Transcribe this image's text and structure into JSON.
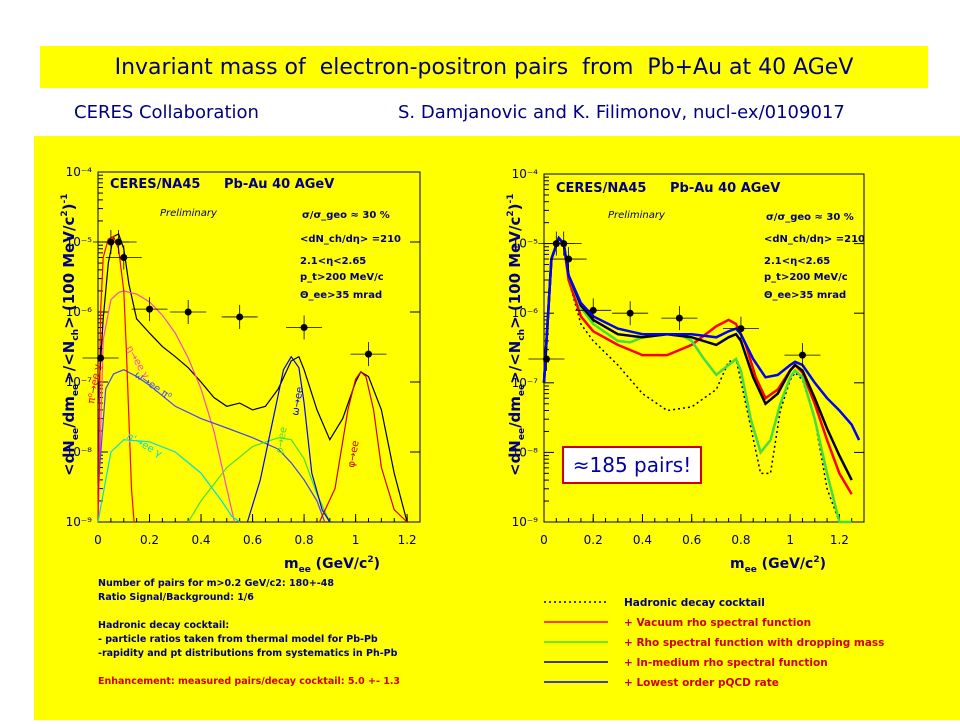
{
  "header": {
    "title": "Invariant mass of  electron-positron pairs  from  Pb+Au at 40 AGeV",
    "collab": "CERES Collaboration",
    "ref": "S. Damjanovic and K. Filimonov, nucl-ex/0109017"
  },
  "colors": {
    "panel": "#ffff00",
    "title_text": "#000080",
    "data_points": "#000000"
  },
  "left_panel": {
    "experiment": "CERES/NA45",
    "system": "Pb-Au 40 AGeV",
    "prelim": "Preliminary",
    "params": [
      "σ/σ_geo ≈ 30 %",
      "<dN_ch/dη> =210",
      "2.1<η<2.65",
      "p_t>200 MeV/c",
      "Θ_ee>35 mrad"
    ],
    "curve_labels": [
      "η→ee γ",
      "ω→ee π⁰",
      "π⁰→ee γ",
      "η'→ee γ",
      "ρ→ee",
      "ω→ee",
      "φ→ee"
    ],
    "notes": [
      {
        "text": "Number of pairs for m>0.2 GeV/c2: 180+-48",
        "color": "#000080"
      },
      {
        "text": "Ratio Signal/Background: 1/6",
        "color": "#000080"
      },
      {
        "text": "",
        "color": "#000080"
      },
      {
        "text": "Hadronic decay cocktail:",
        "color": "#000080"
      },
      {
        "text": "- particle ratios taken from thermal model for Pb-Pb",
        "color": "#000080"
      },
      {
        "text": "-rapidity and pt distributions from systematics in Ph-Pb",
        "color": "#000080"
      },
      {
        "text": "",
        "color": "#000080"
      },
      {
        "text": "Enhancement: measured pairs/decay cocktail: 5.0 +- 1.3",
        "color": "#d00000"
      }
    ]
  },
  "right_panel": {
    "experiment": "CERES/NA45",
    "system": "Pb-Au 40 AGeV",
    "prelim": "Preliminary",
    "params": [
      "σ/σ_geo ≈ 30 %",
      "<dN_ch/dη> =210",
      "2.1<η<2.65",
      "p_t>200 MeV/c",
      "Θ_ee>35 mrad"
    ],
    "pairs_box": "≈185 pairs!",
    "legend": [
      {
        "label": "Hadronic decay cocktail",
        "color": "#000000",
        "dash": "2,3"
      },
      {
        "label": "+ Vacuum rho spectral function",
        "color": "#ff0000",
        "dash": ""
      },
      {
        "label": "+ Rho spectral function with dropping mass",
        "color": "#44dd44",
        "dash": ""
      },
      {
        "label": "+ In-medium rho spectral function",
        "color": "#000000",
        "dash": ""
      },
      {
        "label": "+ Lowest order pQCD rate",
        "color": "#0000ff",
        "dash": ""
      }
    ]
  },
  "chart_data": [
    {
      "type": "line",
      "xlabel": "m_ee (GeV/c²)",
      "ylabel": "<dN_ee/dm_ee>/<N_ch> (100 MeV/c²)⁻¹",
      "xlim": [
        0,
        1.25
      ],
      "ylim": [
        1e-09,
        0.0001
      ],
      "yscale": "log",
      "x_ticks": [
        "0",
        "0.2",
        "0.4",
        "0.6",
        "0.8",
        "1",
        "1.2"
      ],
      "y_ticks": [
        "10⁻⁹",
        "10⁻⁸",
        "10⁻⁷",
        "10⁻⁶",
        "10⁻⁵",
        "10⁻⁴"
      ],
      "points": [
        {
          "x": 0.01,
          "y": 2.2e-07
        },
        {
          "x": 0.05,
          "y": 1e-05
        },
        {
          "x": 0.08,
          "y": 1e-05
        },
        {
          "x": 0.1,
          "y": 6e-06
        },
        {
          "x": 0.2,
          "y": 1.1e-06
        },
        {
          "x": 0.35,
          "y": 1e-06
        },
        {
          "x": 0.55,
          "y": 8.5e-07
        },
        {
          "x": 0.8,
          "y": 6e-07
        },
        {
          "x": 1.05,
          "y": 2.5e-07
        }
      ],
      "series": [
        {
          "color": "#000000",
          "x": [
            0.0,
            0.02,
            0.04,
            0.06,
            0.08,
            0.1,
            0.12,
            0.15,
            0.2,
            0.25,
            0.3,
            0.35,
            0.4,
            0.45,
            0.5,
            0.55,
            0.6,
            0.65,
            0.7,
            0.75,
            0.78,
            0.8,
            0.85,
            0.9,
            0.95,
            1.0,
            1.02,
            1.05,
            1.1,
            1.15,
            1.2
          ],
          "y": [
            5e-08,
            8e-07,
            5e-06,
            1.2e-05,
            1.3e-05,
            8e-06,
            2.5e-06,
            8e-07,
            5e-07,
            3.2e-07,
            2.3e-07,
            1.6e-07,
            1e-07,
            6e-08,
            4.5e-08,
            5e-08,
            4e-08,
            4.5e-08,
            8e-08,
            2e-07,
            2.3e-07,
            1.5e-07,
            4e-08,
            1.5e-08,
            3e-08,
            1e-07,
            1.4e-07,
            1.2e-07,
            4e-08,
            5e-09,
            1e-09
          ]
        },
        {
          "color": "#ff44cc",
          "x": [
            0.0,
            0.02,
            0.05,
            0.08,
            0.1,
            0.15,
            0.2,
            0.25,
            0.3,
            0.35,
            0.4,
            0.45,
            0.5,
            0.53
          ],
          "y": [
            1e-09,
            4e-07,
            1.5e-06,
            1.9e-06,
            2e-06,
            1.8e-06,
            1.4e-06,
            9e-07,
            5e-07,
            2.2e-07,
            8e-08,
            2e-08,
            3e-09,
            1e-09
          ]
        },
        {
          "color": "#4444ff",
          "x": [
            0.0,
            0.03,
            0.06,
            0.1,
            0.15,
            0.2,
            0.3,
            0.4,
            0.5,
            0.6,
            0.7,
            0.75,
            0.8,
            0.85,
            0.88
          ],
          "y": [
            3e-09,
            8e-08,
            1.3e-07,
            1.5e-07,
            1.2e-07,
            9e-08,
            4.5e-08,
            3e-08,
            2.2e-08,
            1.6e-08,
            1.1e-08,
            7e-09,
            4e-09,
            2e-09,
            1e-09
          ]
        },
        {
          "color": "#ff0000",
          "x": [
            0.0,
            0.01,
            0.02,
            0.04,
            0.06,
            0.08,
            0.1,
            0.11,
            0.12,
            0.13,
            0.14
          ],
          "y": [
            1e-09,
            1e-06,
            6e-06,
            1.1e-05,
            1.2e-05,
            8e-06,
            2e-06,
            3e-07,
            3e-08,
            3e-09,
            1e-09
          ]
        },
        {
          "color": "#00dddd",
          "x": [
            0.0,
            0.05,
            0.1,
            0.2,
            0.3,
            0.4,
            0.48,
            0.52,
            0.55
          ],
          "y": [
            1e-09,
            1e-08,
            1.5e-08,
            1.4e-08,
            1e-08,
            5e-09,
            2e-09,
            1.2e-09,
            1e-09
          ]
        },
        {
          "color": "#44dd44",
          "x": [
            0.35,
            0.4,
            0.5,
            0.6,
            0.7,
            0.75,
            0.8,
            0.85,
            0.9
          ],
          "y": [
            1e-09,
            2e-09,
            6e-09,
            1.2e-08,
            1.6e-08,
            1.5e-08,
            8e-09,
            2.5e-09,
            1e-09
          ]
        },
        {
          "color": "#0000ff",
          "x": [
            0.58,
            0.63,
            0.68,
            0.72,
            0.75,
            0.78,
            0.8,
            0.83,
            0.87,
            0.9
          ],
          "y": [
            1e-09,
            4e-09,
            3e-08,
            1.5e-07,
            2.3e-07,
            1.6e-07,
            5e-08,
            5e-09,
            1.5e-09,
            1e-09
          ]
        },
        {
          "color": "#cc0000",
          "x": [
            0.86,
            0.92,
            0.97,
            1.0,
            1.02,
            1.04,
            1.07,
            1.1,
            1.15,
            1.2
          ],
          "y": [
            1e-09,
            3e-09,
            4e-08,
            1.1e-07,
            1.4e-07,
            1.2e-07,
            4e-08,
            6e-09,
            1.5e-09,
            1e-09
          ]
        }
      ]
    },
    {
      "type": "line",
      "xlabel": "m_ee (GeV/c²)",
      "ylabel": "<dN_ee/dm_ee>/<N_ch> (100 MeV/c²)⁻¹",
      "xlim": [
        0,
        1.3
      ],
      "ylim": [
        1e-09,
        0.0001
      ],
      "yscale": "log",
      "x_ticks": [
        "0",
        "0.2",
        "0.4",
        "0.6",
        "0.8",
        "1",
        "1.2"
      ],
      "y_ticks": [
        "10⁻⁹",
        "10⁻⁸",
        "10⁻⁷",
        "10⁻⁶",
        "10⁻⁵",
        "10⁻⁴"
      ],
      "points": [
        {
          "x": 0.01,
          "y": 2.2e-07
        },
        {
          "x": 0.05,
          "y": 1e-05
        },
        {
          "x": 0.08,
          "y": 1e-05
        },
        {
          "x": 0.1,
          "y": 6e-06
        },
        {
          "x": 0.2,
          "y": 1.1e-06
        },
        {
          "x": 0.35,
          "y": 1e-06
        },
        {
          "x": 0.55,
          "y": 8.5e-07
        },
        {
          "x": 0.8,
          "y": 6e-07
        },
        {
          "x": 1.05,
          "y": 2.5e-07
        }
      ],
      "series": [
        {
          "name": "Hadronic decay cocktail",
          "color": "#000000",
          "dash": "2,3",
          "x": [
            0.0,
            0.03,
            0.06,
            0.08,
            0.1,
            0.15,
            0.2,
            0.3,
            0.4,
            0.5,
            0.6,
            0.7,
            0.75,
            0.78,
            0.82,
            0.88,
            0.92,
            0.96,
            1.0,
            1.02,
            1.05,
            1.1,
            1.15,
            1.2
          ],
          "y": [
            1e-07,
            6e-06,
            1.2e-05,
            1e-05,
            3e-06,
            7e-07,
            4e-07,
            1.8e-07,
            7e-08,
            4e-08,
            4.5e-08,
            8e-08,
            2e-07,
            2.2e-07,
            5e-08,
            5e-09,
            5e-09,
            4e-08,
            1.1e-07,
            1.4e-07,
            1.1e-07,
            3e-08,
            3e-09,
            1e-09
          ]
        },
        {
          "name": "+ Vacuum rho spectral function",
          "color": "#ff0000",
          "x": [
            0.0,
            0.03,
            0.06,
            0.08,
            0.1,
            0.15,
            0.2,
            0.3,
            0.4,
            0.5,
            0.6,
            0.7,
            0.75,
            0.78,
            0.82,
            0.86,
            0.9,
            0.95,
            1.0,
            1.02,
            1.05,
            1.1,
            1.15,
            1.2,
            1.25
          ],
          "y": [
            1e-07,
            6e-06,
            1.2e-05,
            1e-05,
            3e-06,
            9e-07,
            5.5e-07,
            3.5e-07,
            2.5e-07,
            2.5e-07,
            3.5e-07,
            6.5e-07,
            8e-07,
            7e-07,
            3.5e-07,
            1.2e-07,
            6e-08,
            8e-08,
            1.5e-07,
            1.8e-07,
            1.4e-07,
            5e-08,
            1.5e-08,
            5e-09,
            2.5e-09
          ]
        },
        {
          "name": "+ Rho spectral function with dropping mass",
          "color": "#44dd44",
          "x": [
            0.0,
            0.03,
            0.06,
            0.08,
            0.1,
            0.15,
            0.2,
            0.3,
            0.35,
            0.4,
            0.5,
            0.55,
            0.6,
            0.65,
            0.7,
            0.75,
            0.78,
            0.8,
            0.84,
            0.88,
            0.92,
            0.96,
            1.0,
            1.02,
            1.05,
            1.1,
            1.15,
            1.2,
            1.25
          ],
          "y": [
            1e-07,
            6e-06,
            1.2e-05,
            1e-05,
            3.5e-06,
            1.2e-06,
            7e-07,
            4e-07,
            3.8e-07,
            4.5e-07,
            5e-07,
            5e-07,
            4e-07,
            2.2e-07,
            1.3e-07,
            1.8e-07,
            2.2e-07,
            1.5e-07,
            3e-08,
            1e-08,
            1.5e-08,
            5e-08,
            1.2e-07,
            1.5e-07,
            1.2e-07,
            3e-08,
            5e-09,
            1e-09,
            1e-09
          ]
        },
        {
          "name": "+ In-medium rho spectral function",
          "color": "#000000",
          "x": [
            0.0,
            0.03,
            0.06,
            0.08,
            0.1,
            0.15,
            0.2,
            0.3,
            0.4,
            0.5,
            0.6,
            0.7,
            0.75,
            0.78,
            0.8,
            0.85,
            0.9,
            0.95,
            1.0,
            1.02,
            1.05,
            1.1,
            1.15,
            1.2,
            1.25
          ],
          "y": [
            1e-07,
            6e-06,
            1.2e-05,
            1e-05,
            3.5e-06,
            1.3e-06,
            8e-07,
            5e-07,
            4.5e-07,
            5e-07,
            4.5e-07,
            3.5e-07,
            4.5e-07,
            5e-07,
            4e-07,
            1.2e-07,
            5e-08,
            7e-08,
            1.5e-07,
            1.8e-07,
            1.5e-07,
            6e-08,
            2.2e-08,
            9e-09,
            4e-09
          ]
        },
        {
          "name": "+ Lowest order pQCD rate",
          "color": "#0000ff",
          "x": [
            0.0,
            0.03,
            0.06,
            0.08,
            0.1,
            0.15,
            0.2,
            0.3,
            0.4,
            0.5,
            0.6,
            0.7,
            0.75,
            0.78,
            0.8,
            0.85,
            0.9,
            0.95,
            1.0,
            1.02,
            1.05,
            1.1,
            1.15,
            1.2,
            1.25,
            1.28
          ],
          "y": [
            1e-07,
            6e-06,
            1.2e-05,
            1e-05,
            3.5e-06,
            1.4e-06,
            9e-07,
            6e-07,
            5e-07,
            5e-07,
            5e-07,
            4.5e-07,
            5.5e-07,
            6e-07,
            5e-07,
            2.2e-07,
            1.2e-07,
            1.3e-07,
            1.8e-07,
            2e-07,
            1.8e-07,
            1e-07,
            6e-08,
            4e-08,
            2.5e-08,
            1.5e-08
          ]
        }
      ]
    }
  ]
}
